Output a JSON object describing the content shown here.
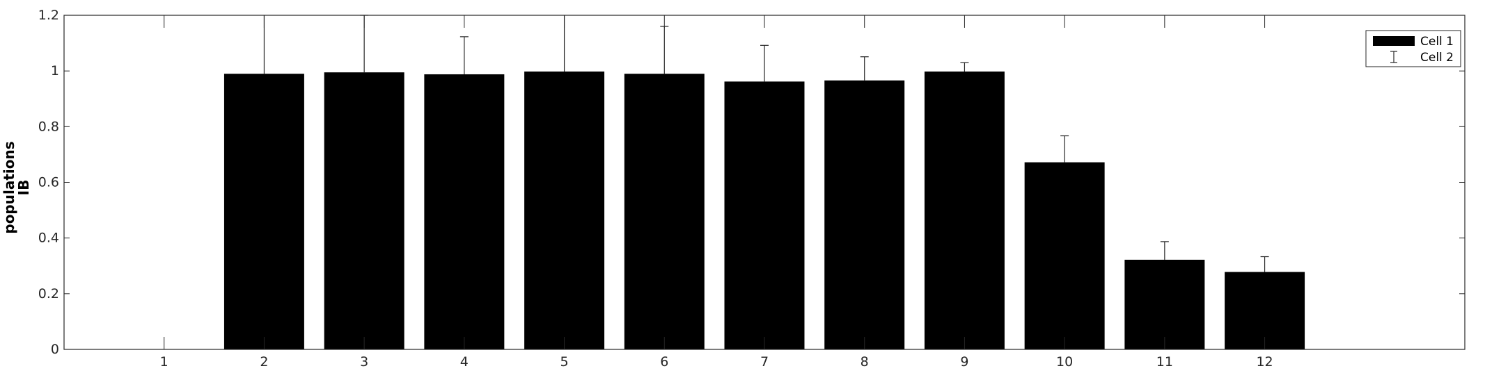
{
  "chart_data": {
    "type": "bar",
    "title": "",
    "xlabel": "",
    "ylabel_lines": [
      "populations",
      "IB"
    ],
    "categories": [
      "1",
      "2",
      "3",
      "4",
      "5",
      "6",
      "7",
      "8",
      "9",
      "10",
      "11",
      "12"
    ],
    "series": [
      {
        "name": "Cell 1",
        "values": [
          0,
          0.99,
          0.995,
          0.988,
          0.998,
          0.99,
          0.962,
          0.966,
          0.998,
          0.672,
          0.322,
          0.278
        ]
      }
    ],
    "error_bars": {
      "name": "Cell 2",
      "upper": [
        null,
        0.22,
        0.205,
        0.135,
        0.205,
        0.17,
        0.13,
        0.085,
        0.032,
        0.095,
        0.065,
        0.055
      ]
    },
    "yticks": [
      "0",
      "0.2",
      "0.4",
      "0.6",
      "0.8",
      "1",
      "1.2"
    ],
    "ylim": [
      0,
      1.2
    ],
    "xlim": [
      0,
      14
    ],
    "legend": {
      "position": "top-right",
      "entries": [
        "Cell 1",
        "Cell 2"
      ]
    },
    "colors": {
      "bar": "#000000",
      "axis": "#262626",
      "background": "#ffffff"
    }
  }
}
